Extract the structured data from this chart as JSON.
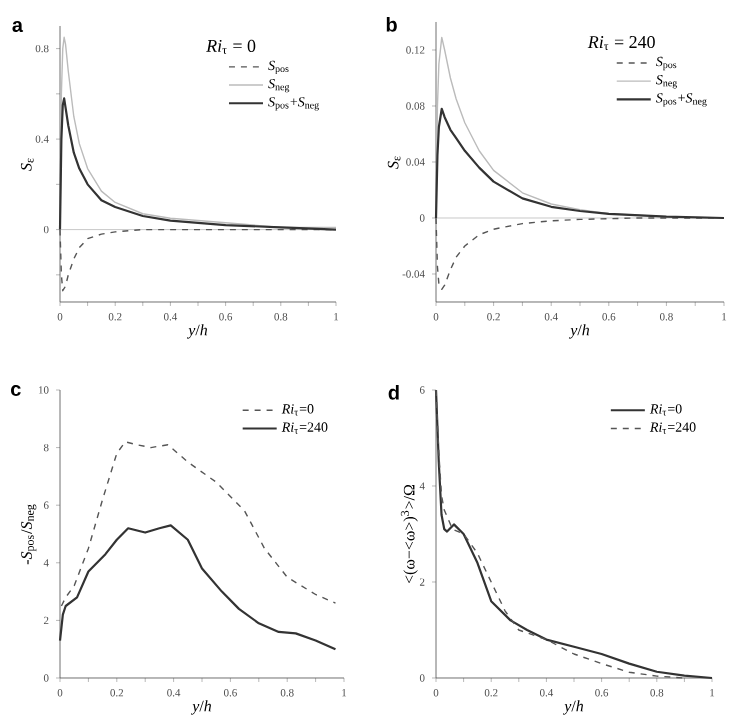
{
  "chart_data": [
    {
      "type": "line",
      "title": "a",
      "xlabel": "*y*/*h*",
      "ylabel": "*S*$_{ε}$",
      "legend_title": "*Ri*$_{τ}$ = 0",
      "legend": "top right",
      "xlim": [
        0,
        1
      ],
      "ylim": [
        -0.32,
        0.9
      ],
      "xticks": [
        0,
        {
          "value": 0.1,
          "label": null
        },
        0.2,
        {
          "value": 0.3,
          "label": null
        },
        0.4,
        {
          "value": 0.5,
          "label": null
        },
        0.6,
        {
          "value": 0.7,
          "label": null
        },
        0.8,
        {
          "value": 0.9,
          "label": null
        },
        1
      ],
      "yticks": [
        {
          "value": -0.2,
          "label": null
        },
        0,
        {
          "value": 0.2,
          "label": null
        },
        0.4,
        {
          "value": 0.6,
          "label": null
        },
        0.8
      ],
      "ref_lines": [
        {
          "axis": "y",
          "value": 0,
          "color": "#c8c8c8"
        }
      ],
      "series": [
        {
          "name": "*S*$_{pos}$",
          "color": "#555555",
          "line_style": "dashed",
          "x": [
            0,
            0.005,
            0.01,
            0.02,
            0.03,
            0.05,
            0.07,
            0.1,
            0.15,
            0.2,
            0.3,
            0.5,
            0.7,
            1.0
          ],
          "values": [
            0,
            -0.2,
            -0.27,
            -0.25,
            -0.2,
            -0.13,
            -0.08,
            -0.04,
            -0.02,
            -0.01,
            0,
            0,
            0,
            0
          ]
        },
        {
          "name": "*S*$_{neg}$",
          "color": "#bbbbbb",
          "line_style": "solid",
          "x": [
            0,
            0.005,
            0.01,
            0.015,
            0.02,
            0.03,
            0.05,
            0.07,
            0.1,
            0.15,
            0.2,
            0.3,
            0.4,
            0.5,
            0.6,
            0.8,
            1.0
          ],
          "values": [
            0,
            0.6,
            0.8,
            0.85,
            0.82,
            0.7,
            0.5,
            0.38,
            0.27,
            0.17,
            0.12,
            0.07,
            0.05,
            0.04,
            0.03,
            0.01,
            0.01
          ]
        },
        {
          "name": "*S*$_{pos}$+*S*$_{neg}$",
          "color": "#333333",
          "line_style": "solid",
          "x": [
            0,
            0.005,
            0.01,
            0.015,
            0.02,
            0.03,
            0.05,
            0.07,
            0.1,
            0.15,
            0.2,
            0.3,
            0.4,
            0.5,
            0.6,
            0.8,
            1.0
          ],
          "values": [
            0,
            0.4,
            0.55,
            0.58,
            0.54,
            0.46,
            0.34,
            0.27,
            0.2,
            0.13,
            0.1,
            0.06,
            0.04,
            0.03,
            0.02,
            0.01,
            0
          ]
        }
      ]
    },
    {
      "type": "line",
      "title": "b",
      "xlabel": "*y*/*h*",
      "ylabel": "*S*$_{ε}$",
      "legend_title": "*Ri*$_{τ}$ = 240",
      "legend": "top right",
      "xlim": [
        0,
        1
      ],
      "ylim": [
        -0.06,
        0.14
      ],
      "xticks": [
        0,
        {
          "value": 0.1,
          "label": null
        },
        0.2,
        {
          "value": 0.3,
          "label": null
        },
        0.4,
        {
          "value": 0.5,
          "label": null
        },
        0.6,
        {
          "value": 0.7,
          "label": null
        },
        0.8,
        {
          "value": 0.9,
          "label": null
        },
        1
      ],
      "yticks": [
        -0.04,
        0,
        0.04,
        0.08,
        0.12
      ],
      "ref_lines": [
        {
          "axis": "y",
          "value": 0,
          "color": "#c8c8c8"
        }
      ],
      "series": [
        {
          "name": "*S*$_{pos}$",
          "color": "#555555",
          "line_style": "dashed",
          "x": [
            0,
            0.005,
            0.01,
            0.02,
            0.03,
            0.05,
            0.07,
            0.1,
            0.15,
            0.2,
            0.3,
            0.4,
            0.5,
            0.7,
            1.0
          ],
          "values": [
            0,
            -0.035,
            -0.047,
            -0.051,
            -0.048,
            -0.037,
            -0.028,
            -0.02,
            -0.012,
            -0.008,
            -0.004,
            -0.002,
            -0.001,
            0,
            0
          ]
        },
        {
          "name": "*S*$_{neg}$",
          "color": "#bbbbbb",
          "line_style": "solid",
          "x": [
            0,
            0.005,
            0.01,
            0.02,
            0.03,
            0.05,
            0.07,
            0.1,
            0.15,
            0.2,
            0.3,
            0.4,
            0.5,
            0.6,
            0.8,
            1.0
          ],
          "values": [
            0,
            0.08,
            0.11,
            0.129,
            0.12,
            0.1,
            0.085,
            0.068,
            0.048,
            0.034,
            0.018,
            0.01,
            0.006,
            0.003,
            0.001,
            0
          ]
        },
        {
          "name": "*S*$_{pos}$+*S*$_{neg}$",
          "color": "#333333",
          "line_style": "solid",
          "x": [
            0,
            0.005,
            0.01,
            0.02,
            0.03,
            0.05,
            0.07,
            0.1,
            0.15,
            0.2,
            0.3,
            0.4,
            0.5,
            0.6,
            0.8,
            1.0
          ],
          "values": [
            0,
            0.045,
            0.065,
            0.078,
            0.072,
            0.063,
            0.057,
            0.048,
            0.036,
            0.026,
            0.014,
            0.008,
            0.005,
            0.003,
            0.001,
            0
          ]
        }
      ]
    },
    {
      "type": "line",
      "title": "c",
      "xlabel": "*y*/*h*",
      "ylabel": "-*S*$_{pos}$/*S*$_{neg}$",
      "legend": "top right",
      "xlim": [
        0,
        1
      ],
      "ylim": [
        0,
        10
      ],
      "xticks": [
        0,
        {
          "value": 0.1,
          "label": null
        },
        0.2,
        {
          "value": 0.3,
          "label": null
        },
        0.4,
        {
          "value": 0.5,
          "label": null
        },
        0.6,
        {
          "value": 0.7,
          "label": null
        },
        0.8,
        {
          "value": 0.9,
          "label": null
        },
        1
      ],
      "yticks": [
        0,
        2,
        4,
        6,
        8,
        10
      ],
      "series": [
        {
          "name": "*Ri*$_{τ}$=0",
          "color": "#555555",
          "line_style": "dashed",
          "x": [
            0.005,
            0.02,
            0.05,
            0.1,
            0.15,
            0.2,
            0.23,
            0.27,
            0.32,
            0.38,
            0.45,
            0.55,
            0.65,
            0.72,
            0.8,
            0.9,
            0.97
          ],
          "values": [
            2.5,
            2.8,
            3.2,
            4.5,
            6.2,
            7.8,
            8.2,
            8.1,
            8.0,
            8.1,
            7.5,
            6.8,
            5.8,
            4.5,
            3.5,
            2.9,
            2.6
          ]
        },
        {
          "name": "*Ri*$_{τ}$=240",
          "color": "#333333",
          "line_style": "solid",
          "x": [
            0,
            0.01,
            0.02,
            0.06,
            0.1,
            0.16,
            0.2,
            0.24,
            0.3,
            0.35,
            0.39,
            0.45,
            0.5,
            0.57,
            0.63,
            0.7,
            0.77,
            0.83,
            0.9,
            0.97
          ],
          "values": [
            1.3,
            2.2,
            2.5,
            2.8,
            3.7,
            4.3,
            4.8,
            5.2,
            5.05,
            5.2,
            5.3,
            4.8,
            3.8,
            3.0,
            2.4,
            1.9,
            1.6,
            1.55,
            1.3,
            1.0
          ]
        }
      ]
    },
    {
      "type": "line",
      "title": "d",
      "xlabel": "*y*/*h*",
      "ylabel": "<(ω−<ω>)$^{3}$>/Ω",
      "legend": "top right",
      "xlim": [
        0,
        1
      ],
      "ylim": [
        0,
        6
      ],
      "xticks": [
        0,
        {
          "value": 0.1,
          "label": null
        },
        0.2,
        {
          "value": 0.3,
          "label": null
        },
        0.4,
        {
          "value": 0.5,
          "label": null
        },
        0.6,
        {
          "value": 0.7,
          "label": null
        },
        0.8,
        {
          "value": 0.9,
          "label": null
        },
        1
      ],
      "yticks": [
        0,
        2,
        4,
        6
      ],
      "series": [
        {
          "name": "*Ri*$_{τ}$=0",
          "color": "#333333",
          "line_style": "solid",
          "x": [
            0,
            0.01,
            0.02,
            0.03,
            0.04,
            0.065,
            0.1,
            0.15,
            0.2,
            0.27,
            0.33,
            0.4,
            0.5,
            0.6,
            0.7,
            0.8,
            0.9,
            1.0
          ],
          "values": [
            6,
            4.5,
            3.4,
            3.1,
            3.05,
            3.2,
            3.0,
            2.4,
            1.6,
            1.2,
            1.0,
            0.8,
            0.65,
            0.5,
            0.3,
            0.13,
            0.05,
            0
          ]
        },
        {
          "name": "*Ri*$_{τ}$=240",
          "color": "#555555",
          "line_style": "dashed",
          "x": [
            0,
            0.01,
            0.02,
            0.03,
            0.06,
            0.1,
            0.15,
            0.2,
            0.25,
            0.3,
            0.4,
            0.5,
            0.6,
            0.7,
            0.8,
            0.9
          ],
          "values": [
            6,
            4.7,
            3.8,
            3.5,
            3.1,
            3.0,
            2.6,
            2.0,
            1.4,
            1.0,
            0.8,
            0.5,
            0.3,
            0.12,
            0.04,
            0
          ]
        }
      ]
    }
  ]
}
